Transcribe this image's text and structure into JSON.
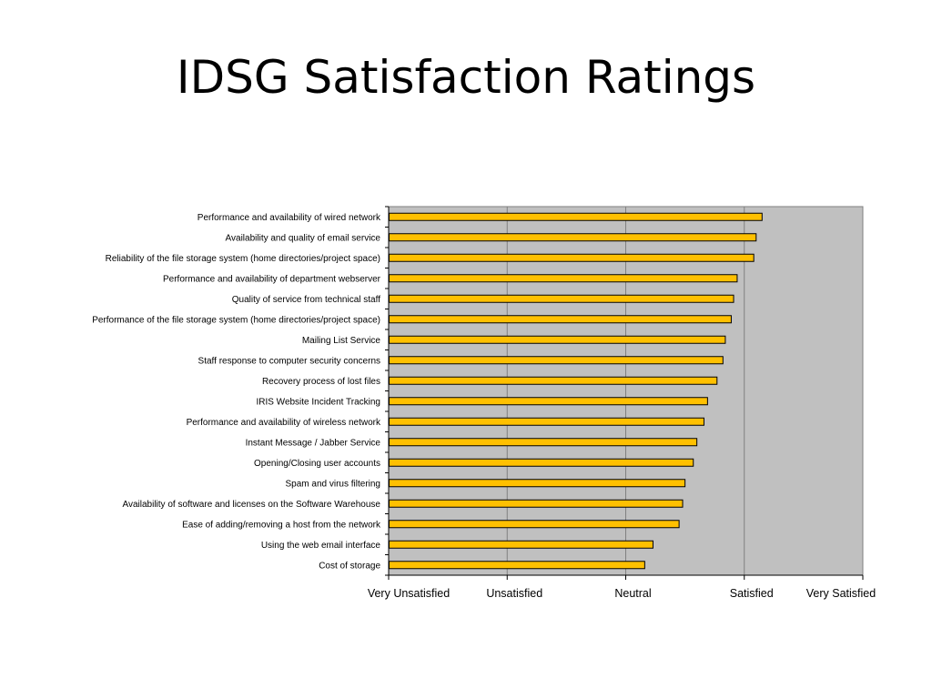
{
  "slide": {
    "title": "IDSG Satisfaction Ratings"
  },
  "chart_data": {
    "type": "bar",
    "orientation": "horizontal",
    "categories": [
      "Performance and availability of wired network",
      "Availability and quality of email service",
      "Reliability of the file storage system (home directories/project space)",
      "Performance and availability of department webserver",
      "Quality of service from technical staff",
      "Performance of the file storage system (home directories/project space)",
      "Mailing List Service",
      "Staff response to computer security concerns",
      "Recovery process of lost files",
      "IRIS Website Incident Tracking",
      "Performance and availability of wireless network",
      "Instant Message / Jabber Service",
      "Opening/Closing user accounts",
      "Spam and virus filtering",
      "Availability of software and licenses on the Software Warehouse",
      "Ease of adding/removing a host from the network",
      "Using the web email interface",
      "Cost of storage"
    ],
    "values": [
      4.15,
      4.1,
      4.08,
      3.94,
      3.91,
      3.89,
      3.84,
      3.82,
      3.77,
      3.69,
      3.66,
      3.6,
      3.57,
      3.5,
      3.48,
      3.45,
      3.23,
      3.16
    ],
    "xlim": [
      1,
      5
    ],
    "x_ticks": [
      1,
      2,
      3,
      4,
      5
    ],
    "x_tick_labels": [
      "Very Unsatisfied",
      "Unsatisfied",
      "Neutral",
      "Satisfied",
      "Very Satisfied"
    ],
    "xlabel": "",
    "ylabel": "",
    "grid": "vertical",
    "legend": "none",
    "colors": {
      "bar_fill": "#FFC000",
      "bar_stroke": "#000000",
      "plot_background": "#C0C0C0",
      "grid": "#808080"
    }
  }
}
